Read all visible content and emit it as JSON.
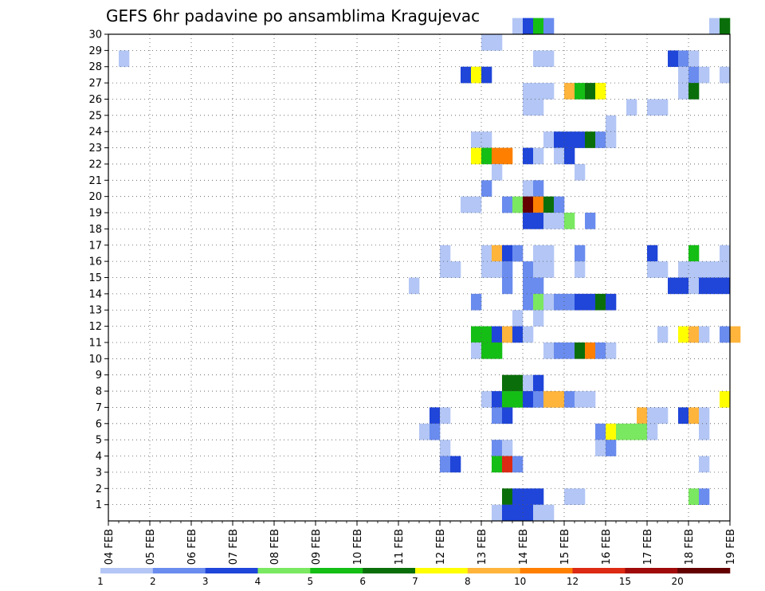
{
  "chart_data": {
    "type": "heatmap",
    "title": "GEFS 6hr padavine po ansamblima Kragujevac",
    "xlabel": "",
    "ylabel": "",
    "x_ticks": [
      "04 FEB",
      "05 FEB",
      "06 FEB",
      "07 FEB",
      "08 FEB",
      "09 FEB",
      "10 FEB",
      "11 FEB",
      "12 FEB",
      "13 FEB",
      "14 FEB",
      "15 FEB",
      "16 FEB",
      "17 FEB",
      "18 FEB",
      "19 FEB"
    ],
    "x_steps_per_day": 4,
    "y_ticks": [
      1,
      2,
      3,
      4,
      5,
      6,
      7,
      8,
      9,
      10,
      11,
      12,
      13,
      14,
      15,
      16,
      17,
      18,
      19,
      20,
      21,
      22,
      23,
      24,
      25,
      26,
      27,
      28,
      29,
      30
    ],
    "ylim": [
      0,
      30
    ],
    "grid": true,
    "colorbar": {
      "labels": [
        "1",
        "2",
        "3",
        "4",
        "5",
        "6",
        "7",
        "8",
        "10",
        "12",
        "15",
        "20"
      ],
      "colors": [
        "#b3c6f5",
        "#6a8cef",
        "#1f45d9",
        "#7ae860",
        "#15be15",
        "#0a6f0a",
        "#ffff00",
        "#ffb43c",
        "#ff7f00",
        "#dc2a14",
        "#a00a0a",
        "#640000"
      ]
    },
    "cells": [
      [
        30,
        39,
        0
      ],
      [
        30,
        40,
        2
      ],
      [
        30,
        41,
        4
      ],
      [
        30,
        42,
        1
      ],
      [
        30,
        58,
        0
      ],
      [
        30,
        59,
        5
      ],
      [
        29,
        36,
        0
      ],
      [
        29,
        37,
        0
      ],
      [
        28,
        1,
        0
      ],
      [
        28,
        41,
        0
      ],
      [
        28,
        42,
        0
      ],
      [
        28,
        54,
        2
      ],
      [
        28,
        55,
        1
      ],
      [
        28,
        56,
        0
      ],
      [
        27,
        34,
        2
      ],
      [
        27,
        35,
        6
      ],
      [
        27,
        36,
        2
      ],
      [
        27,
        55,
        0
      ],
      [
        27,
        56,
        1
      ],
      [
        27,
        57,
        0
      ],
      [
        27,
        59,
        0
      ],
      [
        26,
        40,
        0
      ],
      [
        26,
        41,
        0
      ],
      [
        26,
        42,
        0
      ],
      [
        26,
        44,
        7
      ],
      [
        26,
        45,
        4
      ],
      [
        26,
        46,
        5
      ],
      [
        26,
        47,
        6
      ],
      [
        26,
        55,
        0
      ],
      [
        26,
        56,
        5
      ],
      [
        25,
        40,
        0
      ],
      [
        25,
        41,
        0
      ],
      [
        25,
        50,
        0
      ],
      [
        25,
        52,
        0
      ],
      [
        25,
        53,
        0
      ],
      [
        24,
        48,
        0
      ],
      [
        23,
        35,
        0
      ],
      [
        23,
        36,
        0
      ],
      [
        23,
        42,
        0
      ],
      [
        23,
        43,
        2
      ],
      [
        23,
        44,
        2
      ],
      [
        23,
        45,
        2
      ],
      [
        23,
        46,
        5
      ],
      [
        23,
        47,
        1
      ],
      [
        23,
        48,
        0
      ],
      [
        22,
        35,
        6
      ],
      [
        22,
        36,
        4
      ],
      [
        22,
        37,
        8
      ],
      [
        22,
        38,
        8
      ],
      [
        22,
        40,
        2
      ],
      [
        22,
        41,
        0
      ],
      [
        22,
        43,
        0
      ],
      [
        22,
        44,
        2
      ],
      [
        21,
        37,
        0
      ],
      [
        21,
        45,
        0
      ],
      [
        20,
        36,
        1
      ],
      [
        20,
        40,
        0
      ],
      [
        20,
        41,
        1
      ],
      [
        19,
        34,
        0
      ],
      [
        19,
        35,
        0
      ],
      [
        19,
        38,
        1
      ],
      [
        19,
        39,
        3
      ],
      [
        19,
        40,
        11
      ],
      [
        19,
        41,
        8
      ],
      [
        19,
        42,
        5
      ],
      [
        19,
        43,
        1
      ],
      [
        18,
        40,
        2
      ],
      [
        18,
        41,
        2
      ],
      [
        18,
        42,
        0
      ],
      [
        18,
        43,
        0
      ],
      [
        18,
        44,
        3
      ],
      [
        18,
        46,
        1
      ],
      [
        16,
        32,
        0
      ],
      [
        16,
        36,
        0
      ],
      [
        16,
        37,
        7
      ],
      [
        16,
        38,
        2
      ],
      [
        16,
        39,
        1
      ],
      [
        16,
        41,
        0
      ],
      [
        16,
        42,
        0
      ],
      [
        16,
        45,
        1
      ],
      [
        16,
        52,
        2
      ],
      [
        16,
        56,
        4
      ],
      [
        16,
        59,
        0
      ],
      [
        15,
        32,
        0
      ],
      [
        15,
        33,
        0
      ],
      [
        15,
        36,
        0
      ],
      [
        15,
        37,
        0
      ],
      [
        15,
        38,
        1
      ],
      [
        15,
        40,
        1
      ],
      [
        15,
        41,
        0
      ],
      [
        15,
        42,
        0
      ],
      [
        15,
        45,
        0
      ],
      [
        15,
        52,
        0
      ],
      [
        15,
        53,
        0
      ],
      [
        15,
        55,
        0
      ],
      [
        15,
        56,
        0
      ],
      [
        15,
        57,
        0
      ],
      [
        15,
        58,
        0
      ],
      [
        15,
        59,
        0
      ],
      [
        14,
        29,
        0
      ],
      [
        14,
        38,
        1
      ],
      [
        14,
        40,
        1
      ],
      [
        14,
        41,
        1
      ],
      [
        14,
        54,
        2
      ],
      [
        14,
        55,
        2
      ],
      [
        14,
        56,
        0
      ],
      [
        14,
        57,
        2
      ],
      [
        14,
        58,
        2
      ],
      [
        14,
        59,
        2
      ],
      [
        13,
        35,
        1
      ],
      [
        13,
        40,
        1
      ],
      [
        13,
        41,
        3
      ],
      [
        13,
        42,
        0
      ],
      [
        13,
        43,
        1
      ],
      [
        13,
        44,
        1
      ],
      [
        13,
        45,
        2
      ],
      [
        13,
        46,
        2
      ],
      [
        13,
        47,
        5
      ],
      [
        13,
        48,
        2
      ],
      [
        12,
        39,
        0
      ],
      [
        12,
        41,
        0
      ],
      [
        11,
        35,
        4
      ],
      [
        11,
        36,
        4
      ],
      [
        11,
        37,
        2
      ],
      [
        11,
        38,
        7
      ],
      [
        11,
        39,
        2
      ],
      [
        11,
        40,
        0
      ],
      [
        11,
        53,
        0
      ],
      [
        11,
        55,
        6
      ],
      [
        11,
        56,
        7
      ],
      [
        11,
        57,
        0
      ],
      [
        11,
        59,
        1
      ],
      [
        11,
        60,
        7
      ],
      [
        10,
        35,
        0
      ],
      [
        10,
        36,
        4
      ],
      [
        10,
        37,
        4
      ],
      [
        10,
        42,
        0
      ],
      [
        10,
        43,
        1
      ],
      [
        10,
        44,
        1
      ],
      [
        10,
        45,
        5
      ],
      [
        10,
        46,
        8
      ],
      [
        10,
        47,
        1
      ],
      [
        10,
        48,
        0
      ],
      [
        8,
        38,
        5
      ],
      [
        8,
        39,
        5
      ],
      [
        8,
        40,
        0
      ],
      [
        8,
        41,
        2
      ],
      [
        7,
        36,
        0
      ],
      [
        7,
        37,
        2
      ],
      [
        7,
        38,
        4
      ],
      [
        7,
        39,
        4
      ],
      [
        7,
        40,
        2
      ],
      [
        7,
        41,
        1
      ],
      [
        7,
        42,
        7
      ],
      [
        7,
        43,
        7
      ],
      [
        7,
        44,
        1
      ],
      [
        7,
        45,
        0
      ],
      [
        7,
        46,
        0
      ],
      [
        7,
        59,
        6
      ],
      [
        6,
        31,
        2
      ],
      [
        6,
        32,
        0
      ],
      [
        6,
        37,
        1
      ],
      [
        6,
        38,
        2
      ],
      [
        6,
        51,
        7
      ],
      [
        6,
        52,
        0
      ],
      [
        6,
        53,
        0
      ],
      [
        6,
        55,
        2
      ],
      [
        6,
        56,
        7
      ],
      [
        6,
        57,
        0
      ],
      [
        5,
        30,
        0
      ],
      [
        5,
        31,
        1
      ],
      [
        5,
        47,
        1
      ],
      [
        5,
        48,
        6
      ],
      [
        5,
        49,
        3
      ],
      [
        5,
        50,
        3
      ],
      [
        5,
        51,
        3
      ],
      [
        5,
        52,
        0
      ],
      [
        5,
        57,
        0
      ],
      [
        4,
        32,
        0
      ],
      [
        4,
        37,
        1
      ],
      [
        4,
        38,
        0
      ],
      [
        4,
        47,
        0
      ],
      [
        4,
        48,
        1
      ],
      [
        3,
        32,
        1
      ],
      [
        3,
        33,
        2
      ],
      [
        3,
        37,
        4
      ],
      [
        3,
        38,
        9
      ],
      [
        3,
        39,
        1
      ],
      [
        3,
        57,
        0
      ],
      [
        1,
        38,
        5
      ],
      [
        1,
        39,
        2
      ],
      [
        1,
        40,
        2
      ],
      [
        1,
        41,
        2
      ],
      [
        1,
        44,
        0
      ],
      [
        1,
        45,
        0
      ],
      [
        1,
        56,
        3
      ],
      [
        1,
        57,
        1
      ],
      [
        0,
        37,
        0
      ],
      [
        0,
        38,
        2
      ],
      [
        0,
        39,
        2
      ],
      [
        0,
        40,
        2
      ],
      [
        0,
        41,
        0
      ],
      [
        0,
        42,
        0
      ]
    ]
  }
}
